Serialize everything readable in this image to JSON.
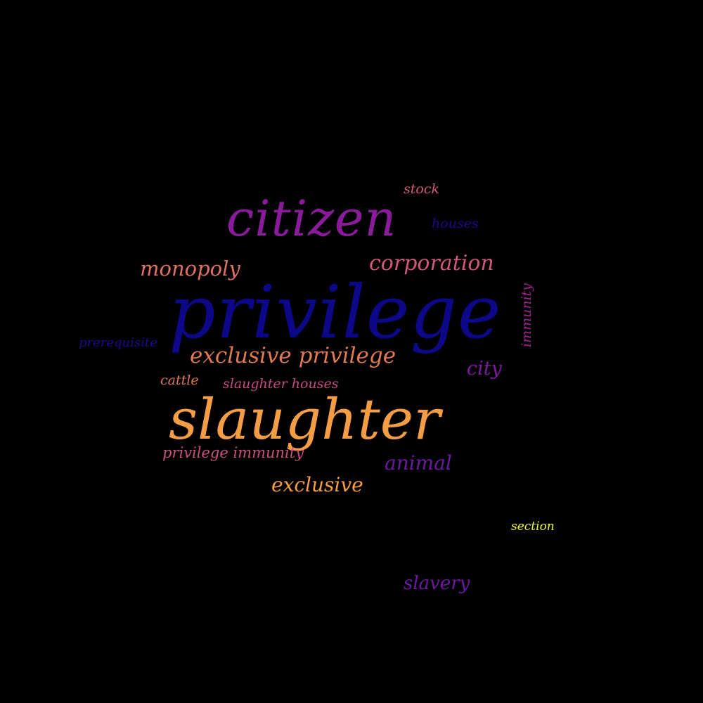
{
  "palette": {
    "background": "#000000",
    "navy": "#0d0887",
    "purple": "#8a1c9c",
    "violet": "#6a1aa0",
    "salmon": "#e07065",
    "pink": "#d0587a",
    "orange": "#f59d45",
    "yellow": "#f0f921"
  },
  "words": [
    {
      "text": "privilege",
      "color": "#0d0887"
    },
    {
      "text": "slaughter",
      "color": "#f59d45"
    },
    {
      "text": "citizen",
      "color": "#8a1c9c"
    },
    {
      "text": "corporation",
      "color": "#d0587a"
    },
    {
      "text": "monopoly",
      "color": "#e07065"
    },
    {
      "text": "exclusive privilege",
      "color": "#e07a55"
    },
    {
      "text": "exclusive",
      "color": "#f59d45"
    },
    {
      "text": "animal",
      "color": "#6a1aa0"
    },
    {
      "text": "city",
      "color": "#7a1a9e"
    },
    {
      "text": "immunity",
      "color": "#a02590"
    },
    {
      "text": "houses",
      "color": "#1a0a8a"
    },
    {
      "text": "stock",
      "color": "#d0587a"
    },
    {
      "text": "prerequisite",
      "color": "#1a0a8a"
    },
    {
      "text": "cattle",
      "color": "#e07a55"
    },
    {
      "text": "slaughter houses",
      "color": "#c44a82"
    },
    {
      "text": "privilege immunity",
      "color": "#c8507e"
    },
    {
      "text": "section",
      "color": "#f0f921"
    },
    {
      "text": "slavery",
      "color": "#6a1aa0"
    }
  ]
}
